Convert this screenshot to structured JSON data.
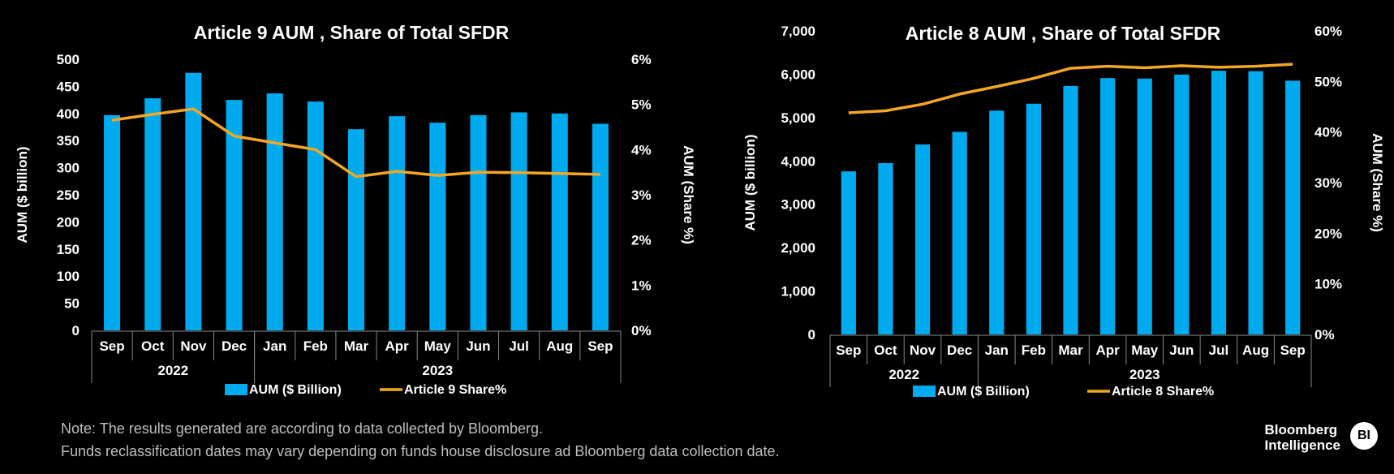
{
  "chart_data": [
    {
      "type": "bar+line",
      "title": "Article 9 AUM , Share of Total SFDR",
      "categories": [
        "Sep",
        "Oct",
        "Nov",
        "Dec",
        "Jan",
        "Feb",
        "Mar",
        "Apr",
        "May",
        "Jun",
        "Jul",
        "Aug",
        "Sep"
      ],
      "years": [
        {
          "label": "2022",
          "from": 0,
          "to": 3
        },
        {
          "label": "2023",
          "from": 4,
          "to": 12
        }
      ],
      "series": [
        {
          "name": "AUM ($ Billion)",
          "kind": "bar",
          "axis": "left",
          "color": "#00aaee",
          "values": [
            397,
            428,
            475,
            425,
            437,
            422,
            371,
            395,
            383,
            397,
            402,
            400,
            381
          ]
        },
        {
          "name": "Article 9 Share%",
          "kind": "line",
          "axis": "right",
          "color": "#f5a623",
          "values": [
            4.65,
            4.78,
            4.9,
            4.3,
            4.15,
            4.0,
            3.4,
            3.52,
            3.43,
            3.5,
            3.49,
            3.47,
            3.45
          ]
        }
      ],
      "ylabel": "AUM ($ billion)",
      "y2label": "AUM (Share %)",
      "yticks": [
        "0",
        "50",
        "100",
        "150",
        "200",
        "250",
        "300",
        "350",
        "400",
        "450",
        "500"
      ],
      "y2ticks": [
        "0%",
        "1%",
        "2%",
        "3%",
        "4%",
        "5%",
        "6%"
      ],
      "ylim": [
        0,
        500
      ],
      "y2lim": [
        0,
        6
      ],
      "legend": [
        {
          "label": "AUM ($ Billion)"
        },
        {
          "label": "Article 9 Share%"
        }
      ]
    },
    {
      "type": "bar+line",
      "title": "Article 8 AUM , Share of Total SFDR",
      "categories": [
        "Sep",
        "Oct",
        "Nov",
        "Dec",
        "Jan",
        "Feb",
        "Mar",
        "Apr",
        "May",
        "Jun",
        "Jul",
        "Aug",
        "Sep"
      ],
      "years": [
        {
          "label": "2022",
          "from": 0,
          "to": 3
        },
        {
          "label": "2023",
          "from": 4,
          "to": 12
        }
      ],
      "series": [
        {
          "name": "AUM ($ Billion)",
          "kind": "bar",
          "axis": "left",
          "color": "#00aaee",
          "values": [
            3760,
            3950,
            4380,
            4670,
            5160,
            5320,
            5730,
            5910,
            5900,
            5990,
            6080,
            6070,
            5850
          ]
        },
        {
          "name": "Article 8 Share%",
          "kind": "line",
          "axis": "right",
          "color": "#f5a623",
          "values": [
            43.8,
            44.2,
            45.5,
            47.5,
            49.0,
            50.6,
            52.6,
            53.0,
            52.7,
            53.1,
            52.8,
            53.0,
            53.4
          ]
        }
      ],
      "ylabel": "AUM ($ billion)",
      "y2label": "AUM (Share %)",
      "yticks": [
        "0",
        "1,000",
        "2,000",
        "3,000",
        "4,000",
        "5,000",
        "6,000",
        "7,000"
      ],
      "y2ticks": [
        "0%",
        "10%",
        "20%",
        "30%",
        "40%",
        "50%",
        "60%"
      ],
      "ylim": [
        0,
        7000
      ],
      "y2lim": [
        0,
        60
      ],
      "legend": [
        {
          "label": "AUM ($ Billion)"
        },
        {
          "label": "Article 8 Share%"
        }
      ]
    }
  ],
  "notes": {
    "line1": "Note: The results generated are according to data collected by Bloomberg.",
    "line2": "Funds reclassification dates may vary depending on funds house disclosure ad Bloomberg data collection date."
  },
  "brand": {
    "line1": "Bloomberg",
    "line2": "Intelligence",
    "badge": "BI"
  }
}
